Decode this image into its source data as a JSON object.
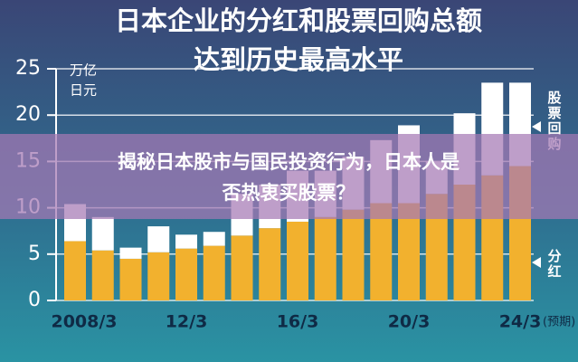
{
  "chart_data": {
    "type": "bar",
    "stacked": true,
    "title": "日本企业的分红和股票回购总额",
    "subtitle": "达到历史最高水平",
    "ylabel": [
      "万亿",
      "日元"
    ],
    "categories": [
      "2008/3",
      null,
      null,
      null,
      "12/3",
      null,
      null,
      null,
      "16/3",
      null,
      null,
      null,
      "20/3",
      null,
      null,
      null,
      "24/3"
    ],
    "x_annotation": "(预期)",
    "series": [
      {
        "name": "分红",
        "color": "#f2b12e",
        "values": [
          6.4,
          5.4,
          4.5,
          5.2,
          5.6,
          5.9,
          7.0,
          7.8,
          8.5,
          9.0,
          9.8,
          10.5,
          10.5,
          11.5,
          12.5,
          13.5,
          14.5
        ]
      },
      {
        "name": "股票回购",
        "color": "#ffffff",
        "values": [
          4.0,
          3.6,
          1.2,
          2.8,
          1.5,
          1.5,
          4.5,
          4.7,
          5.5,
          5.0,
          5.7,
          6.8,
          8.4,
          3.5,
          7.7,
          10.0,
          9.0
        ]
      }
    ],
    "ylim": [
      0,
      25
    ],
    "yticks": [
      0,
      5,
      10,
      15,
      20,
      25
    ],
    "grid": true
  },
  "overlay": {
    "lines": [
      "揭秘日本股市与国民投资行为，日本人是",
      "否热衷买股票？"
    ]
  }
}
